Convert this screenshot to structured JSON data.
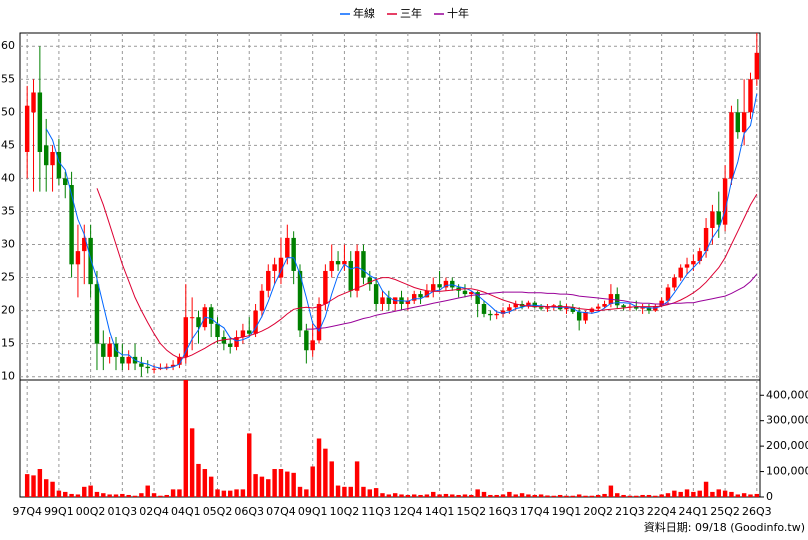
{
  "chart_data": {
    "type": "candlestick",
    "categories": [
      "97Q4",
      null,
      null,
      null,
      null,
      "99Q1",
      null,
      null,
      null,
      null,
      "00Q2",
      null,
      null,
      null,
      null,
      "01Q3",
      null,
      null,
      null,
      null,
      "02Q4",
      null,
      null,
      null,
      null,
      "04Q1",
      null,
      null,
      null,
      null,
      "05Q2",
      null,
      null,
      null,
      null,
      "06Q3",
      null,
      null,
      null,
      null,
      "07Q4",
      null,
      null,
      null,
      null,
      "09Q1",
      null,
      null,
      null,
      null,
      "10Q2",
      null,
      null,
      null,
      null,
      "11Q3",
      null,
      null,
      null,
      null,
      "12Q4",
      null,
      null,
      null,
      null,
      "14Q1",
      null,
      null,
      null,
      null,
      "15Q2",
      null,
      null,
      null,
      null,
      "16Q3",
      null,
      null,
      null,
      null,
      "17Q4",
      null,
      null,
      null,
      null,
      "19Q1",
      null,
      null,
      null,
      null,
      "20Q2",
      null,
      null,
      null,
      null,
      "21Q3",
      null,
      null,
      null,
      null,
      "22Q4",
      null,
      null,
      null,
      null,
      "24Q1",
      null,
      null,
      null,
      null,
      "25Q2",
      null,
      null,
      null,
      null,
      "26Q3"
    ],
    "open": [
      44,
      50,
      53,
      45,
      42,
      44,
      40,
      39,
      27,
      29,
      31,
      24,
      15,
      13,
      15,
      13,
      12,
      13,
      12,
      11.5,
      11.2,
      11.2,
      11.3,
      11.5,
      11.8,
      13,
      19,
      19,
      17.5,
      20.5,
      18,
      16,
      15,
      14.5,
      16,
      17,
      16.5,
      20,
      23,
      26,
      25,
      28,
      31,
      26,
      17,
      14,
      15.5,
      21,
      26,
      27.5,
      27,
      27.5,
      23,
      29,
      25,
      24,
      21,
      22,
      21,
      22,
      21,
      21.5,
      22.5,
      22,
      23,
      24,
      23.5,
      24.5,
      23.5,
      23,
      22.5,
      22.8,
      21,
      19.5,
      19.3,
      19.5,
      20,
      20.5,
      21,
      20.6,
      21.2,
      20.5,
      20.3,
      20.5,
      20.8,
      20.2,
      20.5,
      19.8,
      18.5,
      19.8,
      20.3,
      20.6,
      21,
      22.5,
      20.8,
      20.5,
      20.6,
      20.3,
      20.5,
      20,
      20.7,
      21.5,
      23.5,
      25,
      26.5,
      27,
      27.5,
      29,
      32.5,
      35,
      33,
      40,
      50,
      47,
      50,
      55
    ],
    "high": [
      54,
      55,
      60,
      49,
      45,
      46,
      41,
      41,
      33,
      33,
      33,
      26,
      17,
      16,
      16,
      15,
      14,
      15,
      13,
      12.5,
      11.8,
      12,
      12,
      12.5,
      13.5,
      24,
      22,
      20,
      21,
      21,
      19,
      17,
      16,
      17,
      18,
      19,
      21,
      24,
      27,
      28,
      31,
      33,
      32,
      27,
      18,
      18,
      22,
      27,
      30,
      29,
      30,
      29,
      30,
      30,
      26,
      25,
      23,
      23,
      22,
      23,
      22,
      23,
      23,
      24,
      25,
      26,
      25,
      25,
      24,
      24,
      23,
      23,
      21.5,
      20,
      20,
      20.5,
      21,
      21.5,
      21.5,
      21.5,
      21.5,
      21,
      21,
      21,
      21.5,
      21,
      21,
      20.5,
      20,
      20.5,
      21,
      21.5,
      24,
      23.5,
      21,
      21,
      21.5,
      21,
      21,
      21,
      22,
      24,
      25.5,
      27,
      28,
      28.5,
      29.5,
      34,
      36,
      38,
      42,
      51,
      52,
      55,
      56,
      62
    ],
    "low": [
      40,
      38,
      38,
      38,
      38,
      39,
      37,
      25,
      22,
      24,
      22,
      11,
      11,
      12,
      11,
      11,
      11,
      11,
      10,
      10.5,
      10.5,
      11,
      11,
      11,
      11.3,
      12,
      14,
      15,
      17,
      16,
      15,
      14,
      13.5,
      14,
      15,
      16,
      16,
      19,
      22,
      24,
      24,
      27,
      24,
      16,
      12,
      13,
      15,
      20,
      25,
      26,
      26,
      22,
      22,
      24,
      23,
      20,
      20,
      20,
      20,
      20,
      20,
      21,
      21,
      22,
      22,
      23,
      23,
      23,
      22,
      22,
      22,
      19,
      19,
      18.5,
      18.7,
      19,
      19.5,
      20,
      20.2,
      20.3,
      20.3,
      20,
      19.8,
      20,
      20,
      19.5,
      19.5,
      17,
      18,
      19.5,
      20,
      20.3,
      20.5,
      20.3,
      20,
      20,
      20,
      19.5,
      19.5,
      19.8,
      20.5,
      21,
      23,
      24.5,
      25.5,
      26,
      27,
      28,
      30,
      31,
      32,
      39,
      46,
      45,
      49,
      54
    ],
    "close": [
      51,
      53,
      44,
      42,
      44,
      40,
      39,
      27,
      29,
      31,
      24,
      15,
      13,
      15,
      13,
      12,
      13,
      12,
      11.5,
      11.3,
      11.2,
      11.3,
      11.5,
      11.8,
      13,
      19,
      19,
      17.5,
      20.5,
      18,
      16,
      15,
      14.5,
      16,
      17,
      16.5,
      20,
      23,
      26,
      27,
      28,
      31,
      26,
      17,
      14,
      15.5,
      21,
      26,
      27.5,
      27,
      27.5,
      23,
      29,
      25,
      24,
      21,
      22,
      21,
      22,
      21,
      21.5,
      22.5,
      22,
      23,
      24,
      23.5,
      24.5,
      23.5,
      23,
      22.5,
      22.8,
      21,
      19.5,
      19.3,
      19.5,
      20,
      20.5,
      21,
      20.6,
      21.2,
      20.5,
      20.3,
      20.5,
      20.8,
      20.2,
      20.5,
      19.8,
      18.5,
      19.8,
      20.3,
      20.6,
      21,
      22.5,
      20.8,
      20.5,
      20.6,
      20.3,
      20.5,
      20,
      20.7,
      21.5,
      23.5,
      25,
      26.5,
      27,
      27.5,
      29,
      32.5,
      35,
      33,
      40,
      50,
      47,
      50,
      55,
      59
    ],
    "up_color": "#ff0000",
    "down_color": "#008000",
    "ylim": [
      9.5,
      62
    ],
    "yticks": [
      10,
      15,
      20,
      25,
      30,
      35,
      40,
      45,
      50,
      55,
      60
    ],
    "grid": true,
    "series": [
      {
        "name": "年線",
        "color": "#0066ff",
        "values": [
          null,
          null,
          null,
          47.5,
          45.8,
          42.5,
          41.3,
          37.5,
          33.8,
          31.5,
          27.8,
          24.8,
          20.8,
          16.8,
          14,
          13.3,
          13.3,
          12.5,
          12.1,
          11.9,
          11.5,
          11.3,
          11.3,
          11.5,
          11.9,
          13.8,
          15.7,
          17.1,
          19,
          18.8,
          18,
          17.4,
          15.9,
          15.4,
          15.6,
          16,
          17.4,
          19.1,
          21.4,
          24,
          26,
          28,
          28,
          25.5,
          22,
          18.1,
          16.9,
          19.1,
          22.5,
          25.4,
          27,
          26.3,
          26.6,
          26.1,
          25.3,
          24.8,
          23,
          22,
          21.5,
          21.5,
          21.4,
          21.8,
          21.8,
          22.3,
          22.9,
          23.1,
          23.8,
          23.9,
          23.6,
          23.4,
          23,
          22.3,
          21.5,
          20.7,
          19.8,
          19.6,
          19.8,
          20.3,
          20.5,
          20.8,
          20.8,
          20.7,
          20.6,
          20.5,
          20.5,
          20.5,
          20.3,
          19.8,
          19.7,
          19.6,
          19.8,
          20.4,
          21.1,
          21.2,
          21.2,
          21.1,
          20.6,
          20.5,
          20.4,
          20.4,
          20.7,
          21.4,
          22.7,
          24.1,
          25.5,
          26.5,
          27.5,
          29,
          31,
          32.4,
          35.1,
          39.5,
          42.5,
          46.8,
          48,
          52.8
        ]
      },
      {
        "name": "三年",
        "color": "#dd0033",
        "values": [
          null,
          null,
          null,
          null,
          null,
          null,
          null,
          null,
          null,
          null,
          null,
          38.5,
          36,
          33,
          30,
          27,
          24.5,
          22,
          20,
          18.2,
          16.5,
          15,
          14,
          13.3,
          12.8,
          12.9,
          13.3,
          13.8,
          14.3,
          14.9,
          15.4,
          15.6,
          15.7,
          15.8,
          16,
          16.2,
          16.5,
          16.9,
          17.4,
          18,
          18.7,
          19.5,
          20.2,
          20.4,
          20.5,
          20.4,
          20.6,
          21,
          21.6,
          22.2,
          22.6,
          23,
          23.4,
          23.8,
          24.3,
          24.7,
          25,
          25,
          24.7,
          24.3,
          23.9,
          23.5,
          23.2,
          23,
          22.9,
          22.9,
          23,
          23.1,
          23.2,
          23.3,
          23.3,
          23.1,
          22.8,
          22.4,
          22,
          21.6,
          21.3,
          21,
          20.8,
          20.7,
          20.6,
          20.6,
          20.6,
          20.6,
          20.6,
          20.6,
          20.5,
          20.3,
          20.2,
          20.1,
          20,
          20.1,
          20.2,
          20.3,
          20.4,
          20.5,
          20.6,
          20.6,
          20.6,
          20.6,
          20.7,
          20.9,
          21.2,
          21.6,
          22.1,
          22.7,
          23.4,
          24.3,
          25.4,
          26.5,
          28,
          30,
          32,
          34,
          36,
          37.6
        ]
      },
      {
        "name": "十年",
        "color": "#990099",
        "values": [
          null,
          null,
          null,
          null,
          null,
          null,
          null,
          null,
          null,
          null,
          null,
          null,
          null,
          null,
          null,
          null,
          null,
          null,
          null,
          null,
          null,
          null,
          null,
          null,
          null,
          null,
          null,
          null,
          null,
          null,
          null,
          null,
          null,
          null,
          null,
          null,
          null,
          null,
          null,
          null,
          null,
          null,
          null,
          null,
          17.2,
          17.2,
          17.3,
          17.4,
          17.6,
          17.8,
          18,
          18.2,
          18.5,
          18.8,
          19,
          19.3,
          19.5,
          19.7,
          19.9,
          20.1,
          20.3,
          20.5,
          20.7,
          20.9,
          21.1,
          21.3,
          21.5,
          21.7,
          21.9,
          22.1,
          22.3,
          22.4,
          22.5,
          22.6,
          22.7,
          22.8,
          22.8,
          22.8,
          22.8,
          22.7,
          22.7,
          22.7,
          22.6,
          22.6,
          22.5,
          22.5,
          22.4,
          22.2,
          22.1,
          22,
          21.9,
          21.8,
          21.7,
          21.6,
          21.5,
          21.3,
          21.2,
          21.1,
          21.1,
          21,
          21,
          21,
          21.1,
          21.1,
          21.2,
          21.2,
          21.4,
          21.6,
          21.8,
          22,
          22.2,
          22.6,
          23.1,
          23.6,
          24.4,
          25.5
        ]
      }
    ],
    "volume": {
      "color": "#ff0000",
      "ylim": [
        0,
        460000
      ],
      "yticks": [
        0,
        {
          "value": 100000,
          "label": "100,000"
        },
        {
          "value": 200000,
          "label": "200,000"
        },
        {
          "value": 300000,
          "label": "300,000"
        },
        {
          "value": 400000,
          "label": "400,000"
        }
      ],
      "values": [
        90000,
        85000,
        110000,
        70000,
        60000,
        25000,
        20000,
        12000,
        10000,
        40000,
        45000,
        20000,
        15000,
        10000,
        10000,
        12000,
        8000,
        5000,
        15000,
        45000,
        15000,
        5000,
        8000,
        30000,
        30000,
        460000,
        270000,
        130000,
        110000,
        80000,
        30000,
        25000,
        25000,
        30000,
        30000,
        250000,
        90000,
        80000,
        70000,
        110000,
        110000,
        100000,
        95000,
        40000,
        30000,
        120000,
        230000,
        190000,
        140000,
        45000,
        40000,
        40000,
        140000,
        40000,
        30000,
        35000,
        15000,
        10000,
        15000,
        10000,
        8000,
        10000,
        8000,
        10000,
        20000,
        10000,
        12000,
        10000,
        8000,
        10000,
        8000,
        30000,
        20000,
        8000,
        8000,
        10000,
        20000,
        10000,
        15000,
        10000,
        8000,
        10000,
        6000,
        5000,
        8000,
        5000,
        5000,
        10000,
        5000,
        5000,
        8000,
        12000,
        45000,
        15000,
        8000,
        5000,
        5000,
        8000,
        8000,
        5000,
        10000,
        15000,
        25000,
        20000,
        30000,
        20000,
        25000,
        60000,
        20000,
        30000,
        25000,
        20000,
        10000,
        15000,
        10000,
        12000
      ]
    },
    "footer": "資料日期: 09/18  (Goodinfo.tw)"
  }
}
